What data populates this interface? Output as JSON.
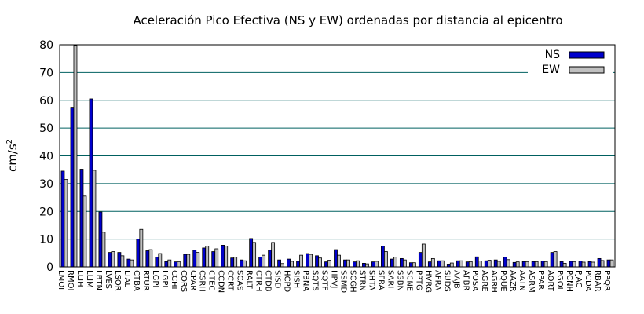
{
  "chart_data": {
    "type": "bar",
    "title": "Aceleración Pico Efectiva (NS y EW) ordenadas por distancia al epicentro",
    "xlabel": "",
    "ylabel": "cm/s",
    "ylabel_superscript": "2",
    "ylim": [
      0,
      80
    ],
    "yticks": [
      "0",
      "10",
      "20",
      "30",
      "40",
      "50",
      "60",
      "70",
      "80"
    ],
    "grid": "horizontal",
    "legend_position": "top-right",
    "categories": [
      "LMOI",
      "RMOI",
      "LLIH",
      "LLIM",
      "LBTN",
      "LVES",
      "LSOR",
      "LTAL",
      "CTBA",
      "RTUR",
      "LGPI",
      "LGPL",
      "CCHI",
      "CORS",
      "CPAR",
      "CSRH",
      "CTEC",
      "CCDN",
      "CCRT",
      "SCAS",
      "RALT",
      "CTRH",
      "CTDB",
      "SISD",
      "HCPD",
      "SISH",
      "PBNA",
      "SQTS",
      "SQTF",
      "HPVJ",
      "SSMD",
      "SCGH",
      "STRN",
      "SHTA",
      "SFRA",
      "SARI",
      "SSBN",
      "SCNE",
      "PPTG",
      "HVRG",
      "AFRA",
      "SUDS",
      "AAJB",
      "AFBR",
      "POSA",
      "AGRE",
      "AGRH",
      "PQUE",
      "AAZR",
      "AATN",
      "ASRM",
      "PPAR",
      "AORT",
      "PGOL",
      "PCNH",
      "PJAC",
      "PCDA",
      "RBAR",
      "PPQR"
    ],
    "series": [
      {
        "name": "NS",
        "color": "#0000cc",
        "values": [
          34.5,
          57.5,
          35.2,
          60.5,
          19.8,
          5.2,
          5.2,
          2.8,
          10,
          5.8,
          3.5,
          1.9,
          1.8,
          4.5,
          6,
          6.8,
          5.5,
          7.8,
          3.2,
          2.5,
          10.2,
          3.5,
          6,
          2.5,
          2.8,
          2,
          4.8,
          4,
          1.8,
          6.2,
          2.5,
          1.8,
          1.3,
          1.8,
          7.5,
          2.8,
          3,
          1.5,
          5.2,
          1.8,
          2.2,
          1,
          2.2,
          1.8,
          3.6,
          2.2,
          2.5,
          3.5,
          1.6,
          1.9,
          1.9,
          2.1,
          5.2,
          1.9,
          2,
          2.1,
          1.9,
          3,
          2.5
        ]
      },
      {
        "name": "EW",
        "color": "#c0c0c0",
        "values": [
          31.5,
          79.8,
          25.5,
          34.8,
          12.5,
          5.5,
          4,
          2.5,
          13.5,
          6.2,
          4.8,
          2.5,
          1.8,
          4.5,
          5.2,
          7.5,
          6.5,
          7.5,
          3.5,
          2.2,
          8.8,
          4.2,
          8.8,
          1.2,
          2,
          4.2,
          4.5,
          3.2,
          2.4,
          4.2,
          2.5,
          2.2,
          1.1,
          2,
          5.5,
          3.5,
          2.5,
          1.5,
          8.2,
          3,
          2.2,
          1.4,
          2.2,
          1.9,
          2.1,
          2.4,
          2,
          2.6,
          1.8,
          1.8,
          1.9,
          1.9,
          5.5,
          1.3,
          1.8,
          1.7,
          1.7,
          2.3,
          2.5
        ]
      }
    ]
  }
}
